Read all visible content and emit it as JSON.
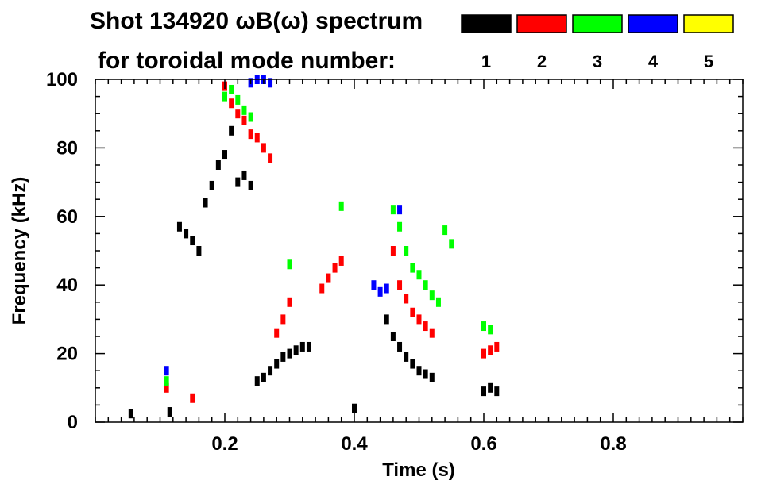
{
  "header": {
    "title": "Shot 134920 ωB(ω) spectrum",
    "subtitle": "for toroidal mode number:"
  },
  "chart_data": {
    "type": "scatter",
    "title": "Shot 134920 ωB(ω) spectrum",
    "subtitle": "for toroidal mode number:",
    "xlabel": "Time (s)",
    "ylabel": "Frequency (kHz)",
    "xlim": [
      0,
      1.0
    ],
    "ylim": [
      0,
      100
    ],
    "x_ticks": [
      {
        "value": 0.2,
        "label": "0.2"
      },
      {
        "value": 0.4,
        "label": "0.4"
      },
      {
        "value": 0.6,
        "label": "0.6"
      },
      {
        "value": 0.8,
        "label": "0.8"
      }
    ],
    "y_ticks": [
      {
        "value": 0,
        "label": "0"
      },
      {
        "value": 20,
        "label": "20"
      },
      {
        "value": 40,
        "label": "40"
      },
      {
        "value": 60,
        "label": "60"
      },
      {
        "value": 80,
        "label": "80"
      },
      {
        "value": 100,
        "label": "100"
      }
    ],
    "grid": false,
    "legend_position": "top-right",
    "series": [
      {
        "name": "1",
        "color": "#000000",
        "points": [
          [
            0.055,
            2.5
          ],
          [
            0.115,
            3
          ],
          [
            0.13,
            57
          ],
          [
            0.14,
            55
          ],
          [
            0.15,
            53
          ],
          [
            0.16,
            50
          ],
          [
            0.17,
            64
          ],
          [
            0.18,
            69
          ],
          [
            0.19,
            75
          ],
          [
            0.2,
            78
          ],
          [
            0.21,
            85
          ],
          [
            0.22,
            70
          ],
          [
            0.23,
            72
          ],
          [
            0.24,
            69
          ],
          [
            0.25,
            12
          ],
          [
            0.26,
            13
          ],
          [
            0.27,
            15
          ],
          [
            0.28,
            17
          ],
          [
            0.29,
            19
          ],
          [
            0.3,
            20
          ],
          [
            0.31,
            21
          ],
          [
            0.32,
            22
          ],
          [
            0.33,
            22
          ],
          [
            0.4,
            4
          ],
          [
            0.45,
            30
          ],
          [
            0.46,
            25
          ],
          [
            0.47,
            22
          ],
          [
            0.48,
            19
          ],
          [
            0.49,
            17
          ],
          [
            0.5,
            15
          ],
          [
            0.51,
            14
          ],
          [
            0.52,
            13
          ],
          [
            0.6,
            9
          ],
          [
            0.61,
            10
          ],
          [
            0.62,
            9
          ]
        ]
      },
      {
        "name": "2",
        "color": "#ff0000",
        "points": [
          [
            0.11,
            10
          ],
          [
            0.15,
            7
          ],
          [
            0.2,
            98
          ],
          [
            0.21,
            93
          ],
          [
            0.22,
            90
          ],
          [
            0.23,
            88
          ],
          [
            0.24,
            84
          ],
          [
            0.25,
            83
          ],
          [
            0.26,
            80
          ],
          [
            0.27,
            77
          ],
          [
            0.28,
            26
          ],
          [
            0.29,
            30
          ],
          [
            0.3,
            35
          ],
          [
            0.35,
            39
          ],
          [
            0.36,
            42
          ],
          [
            0.37,
            45
          ],
          [
            0.38,
            47
          ],
          [
            0.46,
            50
          ],
          [
            0.47,
            40
          ],
          [
            0.48,
            36
          ],
          [
            0.49,
            32
          ],
          [
            0.5,
            30
          ],
          [
            0.51,
            28
          ],
          [
            0.52,
            26
          ],
          [
            0.6,
            20
          ],
          [
            0.61,
            21
          ],
          [
            0.62,
            22
          ]
        ]
      },
      {
        "name": "3",
        "color": "#00ff00",
        "points": [
          [
            0.11,
            12
          ],
          [
            0.2,
            95
          ],
          [
            0.21,
            97
          ],
          [
            0.22,
            94
          ],
          [
            0.23,
            91
          ],
          [
            0.24,
            89
          ],
          [
            0.3,
            46
          ],
          [
            0.38,
            63
          ],
          [
            0.46,
            62
          ],
          [
            0.47,
            57
          ],
          [
            0.48,
            50
          ],
          [
            0.49,
            45
          ],
          [
            0.5,
            43
          ],
          [
            0.51,
            40
          ],
          [
            0.52,
            37
          ],
          [
            0.53,
            35
          ],
          [
            0.54,
            56
          ],
          [
            0.55,
            52
          ],
          [
            0.6,
            28
          ],
          [
            0.61,
            27
          ]
        ]
      },
      {
        "name": "4",
        "color": "#0000ff",
        "points": [
          [
            0.11,
            15
          ],
          [
            0.24,
            99
          ],
          [
            0.25,
            100
          ],
          [
            0.26,
            100
          ],
          [
            0.27,
            99
          ],
          [
            0.43,
            40
          ],
          [
            0.44,
            38
          ],
          [
            0.45,
            39
          ],
          [
            0.47,
            62
          ]
        ]
      },
      {
        "name": "5",
        "color": "#ffff00",
        "points": []
      }
    ]
  }
}
